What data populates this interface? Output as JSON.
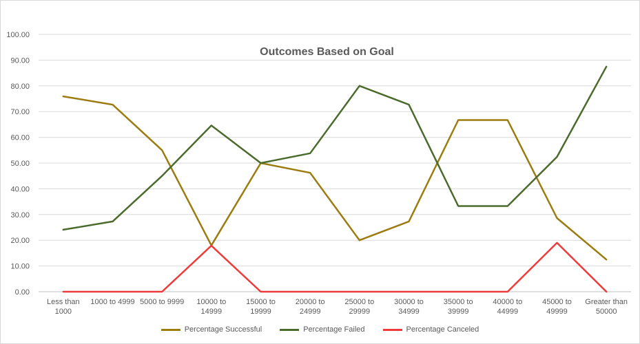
{
  "chart_data": {
    "type": "line",
    "title": "Outcomes Based on Goal",
    "xlabel": "",
    "ylabel": "",
    "ylim": [
      0,
      100
    ],
    "yticks": [
      "0.00",
      "10.00",
      "20.00",
      "30.00",
      "40.00",
      "50.00",
      "60.00",
      "70.00",
      "80.00",
      "90.00",
      "100.00"
    ],
    "categories": [
      [
        "Less than",
        "1000"
      ],
      [
        "1000 to 4999"
      ],
      [
        "5000 to 9999"
      ],
      [
        "10000 to",
        "14999"
      ],
      [
        "15000 to",
        "19999"
      ],
      [
        "20000 to",
        "24999"
      ],
      [
        "25000 to",
        "29999"
      ],
      [
        "30000 to",
        "34999"
      ],
      [
        "35000 to",
        "39999"
      ],
      [
        "40000 to",
        "44999"
      ],
      [
        "45000 to",
        "49999"
      ],
      [
        "Greater than",
        "50000"
      ]
    ],
    "grid": true,
    "legend_position": "bottom",
    "series": [
      {
        "name": "Percentage Successful",
        "color": "#9c7b0f",
        "values": [
          75.9,
          72.7,
          55.0,
          18.0,
          50.0,
          46.2,
          20.0,
          27.3,
          66.7,
          66.7,
          28.6,
          12.5
        ]
      },
      {
        "name": "Percentage Failed",
        "color": "#4a6b2c",
        "values": [
          24.1,
          27.3,
          45.0,
          64.6,
          50.0,
          53.8,
          80.0,
          72.7,
          33.3,
          33.3,
          52.4,
          87.5
        ]
      },
      {
        "name": "Percentage Canceled",
        "color": "#ee3a3a",
        "values": [
          0,
          0,
          0,
          17.9,
          0,
          0,
          0,
          0,
          0,
          0,
          19.0,
          0
        ]
      }
    ]
  }
}
